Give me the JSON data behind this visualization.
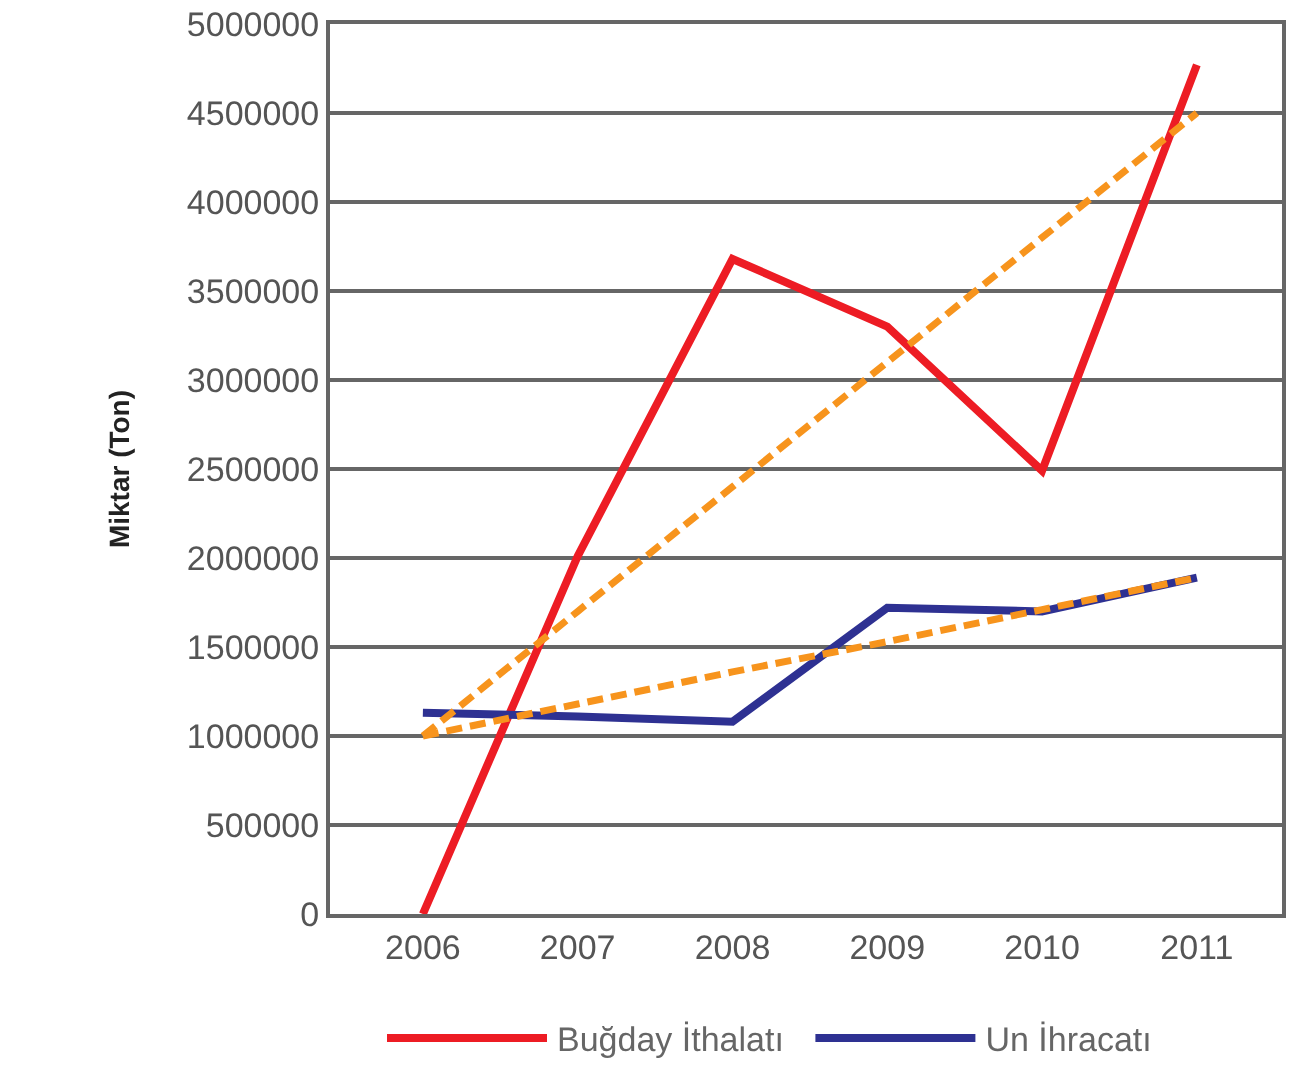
{
  "chart_data": {
    "type": "line",
    "ylabel": "Miktar (Ton)",
    "categories": [
      "2006",
      "2007",
      "2008",
      "2009",
      "2010",
      "2011"
    ],
    "series": [
      {
        "name": "Buğday İthalatı",
        "color": "#ed1c24",
        "values": [
          0,
          2010000,
          3680000,
          3300000,
          2490000,
          4770000
        ]
      },
      {
        "name": "Un İhracatı",
        "color": "#2e3192",
        "values": [
          1130000,
          1110000,
          1080000,
          1720000,
          1700000,
          1890000
        ]
      },
      {
        "color": "#f7941d",
        "line_style": "dashed",
        "values": [
          1000000,
          1700000,
          2400000,
          3100000,
          3800000,
          4500000
        ]
      },
      {
        "color": "#f7941d",
        "line_style": "dashed",
        "values": [
          1000000,
          1180000,
          1360000,
          1530000,
          1710000,
          1890000
        ]
      }
    ],
    "ylim": [
      0,
      5000000
    ],
    "yticks": [
      0,
      500000,
      1000000,
      1500000,
      2000000,
      2500000,
      3000000,
      3500000,
      4000000,
      4500000,
      5000000
    ],
    "grid": "y",
    "legend": "bottom",
    "line_style": "solid",
    "marker": "none"
  }
}
